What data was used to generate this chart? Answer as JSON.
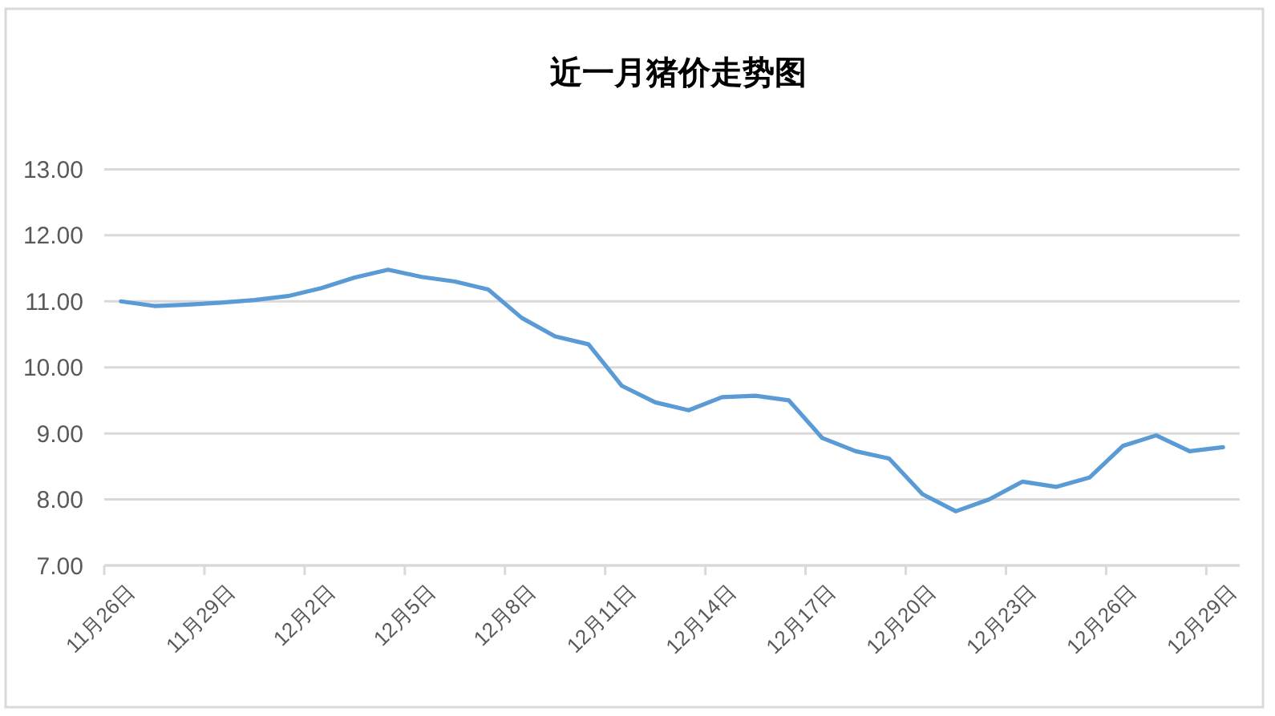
{
  "chart_data": {
    "type": "line",
    "title": "近一月猪价走势图",
    "categories": [
      "11月26日",
      null,
      null,
      "11月29日",
      null,
      null,
      "12月2日",
      null,
      null,
      "12月5日",
      null,
      null,
      "12月8日",
      null,
      null,
      "12月11日",
      null,
      null,
      "12月14日",
      null,
      null,
      "12月17日",
      null,
      null,
      "12月20日",
      null,
      null,
      "12月23日",
      null,
      null,
      "12月26日",
      null,
      null,
      "12月29日"
    ],
    "values": [
      11.0,
      10.93,
      10.95,
      10.98,
      11.02,
      11.08,
      11.2,
      11.36,
      11.48,
      11.37,
      11.3,
      11.18,
      10.75,
      10.47,
      10.35,
      9.72,
      9.47,
      9.35,
      9.55,
      9.57,
      9.5,
      8.93,
      8.73,
      8.62,
      8.08,
      7.82,
      8.0,
      8.27,
      8.19,
      8.33,
      8.81,
      8.97,
      8.73,
      8.79
    ],
    "color": "#5b9bd5",
    "ylim": [
      7,
      13
    ],
    "yticks": [
      {
        "value": 7,
        "label": "7.00"
      },
      {
        "value": 8,
        "label": "8.00"
      },
      {
        "value": 9,
        "label": "9.00"
      },
      {
        "value": 10,
        "label": "10.00"
      },
      {
        "value": 11,
        "label": "11.00"
      },
      {
        "value": 12,
        "label": "12.00"
      },
      {
        "value": 13,
        "label": "13.00"
      }
    ],
    "grid": "y"
  }
}
